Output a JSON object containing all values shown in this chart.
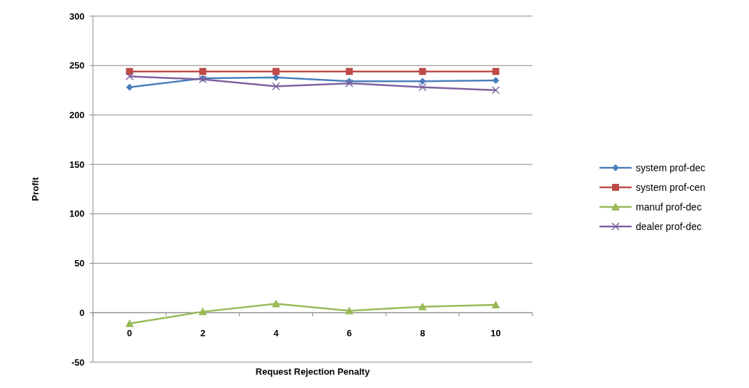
{
  "chart_data": {
    "type": "line",
    "xlabel": "Request Rejection Penalty",
    "ylabel": "Profit",
    "categories": [
      "0",
      "2",
      "4",
      "6",
      "8",
      "10"
    ],
    "series": [
      {
        "name": "system prof-dec",
        "color": "#4a7ebb",
        "marker": "diamond",
        "values": [
          228,
          237,
          238,
          234,
          234,
          235
        ]
      },
      {
        "name": "system prof-cen",
        "color": "#be4b48",
        "marker": "square",
        "values": [
          244,
          244,
          244,
          244,
          244,
          244
        ]
      },
      {
        "name": "manuf prof-dec",
        "color": "#98b954",
        "marker": "triangle",
        "values": [
          -11,
          1,
          9,
          2,
          6,
          8
        ]
      },
      {
        "name": "dealer prof-dec",
        "color": "#7d60a0",
        "marker": "cross",
        "values": [
          239,
          236,
          229,
          232,
          228,
          225
        ]
      }
    ],
    "ylim": [
      -50,
      300
    ],
    "yticks": [
      -50,
      0,
      50,
      100,
      150,
      200,
      250,
      300
    ],
    "grid": "y",
    "legend": "right"
  }
}
